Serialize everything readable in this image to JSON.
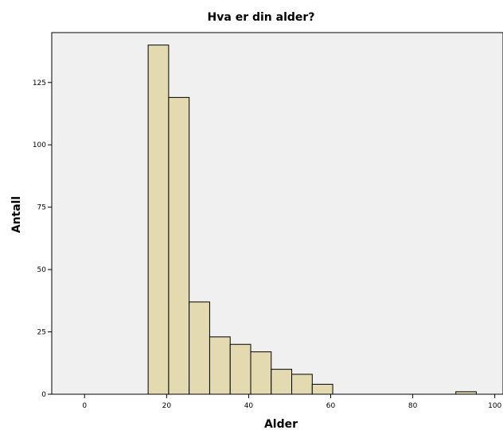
{
  "chart_data": {
    "type": "bar",
    "title": "Hva er din alder?",
    "xlabel": "Alder",
    "ylabel": "Antall",
    "xlim": [
      -8,
      102
    ],
    "ylim": [
      0,
      145
    ],
    "xticks": [
      0,
      20,
      40,
      60,
      80,
      100
    ],
    "yticks": [
      0,
      25,
      50,
      75,
      100,
      125
    ],
    "bins": [
      {
        "start": 15.5,
        "end": 20.5,
        "count": 140
      },
      {
        "start": 20.5,
        "end": 25.5,
        "count": 119
      },
      {
        "start": 25.5,
        "end": 30.5,
        "count": 37
      },
      {
        "start": 30.5,
        "end": 35.5,
        "count": 23
      },
      {
        "start": 35.5,
        "end": 40.5,
        "count": 20
      },
      {
        "start": 40.5,
        "end": 45.5,
        "count": 17
      },
      {
        "start": 45.5,
        "end": 50.5,
        "count": 10
      },
      {
        "start": 50.5,
        "end": 55.5,
        "count": 8
      },
      {
        "start": 55.5,
        "end": 60.5,
        "count": 4
      },
      {
        "start": 90.5,
        "end": 95.5,
        "count": 1
      }
    ],
    "grid": false,
    "colors": {
      "plot_background": "#f0f0f0",
      "bar_fill": "#e3dab2",
      "bar_stroke": "#000000"
    }
  }
}
